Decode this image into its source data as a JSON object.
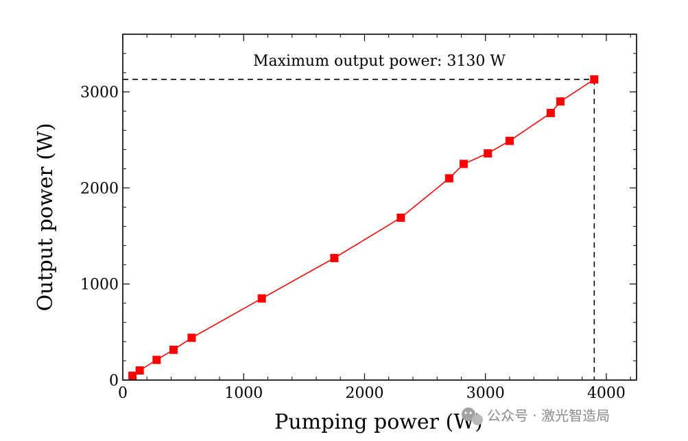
{
  "chart_data": {
    "type": "line",
    "xlabel": "Pumping power (W)",
    "ylabel": "Output power (W)",
    "xlim": [
      0,
      4250
    ],
    "ylim": [
      0,
      3600
    ],
    "x_ticks": [
      0,
      1000,
      2000,
      3000,
      4000
    ],
    "x_tick_labels": [
      "0",
      "1000",
      "2000",
      "3000",
      "4000"
    ],
    "y_ticks": [
      0,
      1000,
      2000,
      3000
    ],
    "y_tick_labels": [
      "0",
      "1000",
      "2000",
      "3000"
    ],
    "grid": false,
    "series": [
      {
        "color": "#ff0000",
        "marker": "square",
        "points": [
          [
            80,
            45
          ],
          [
            140,
            100
          ],
          [
            280,
            210
          ],
          [
            420,
            315
          ],
          [
            570,
            440
          ],
          [
            1150,
            850
          ],
          [
            1750,
            1270
          ],
          [
            2300,
            1690
          ],
          [
            2700,
            2100
          ],
          [
            2820,
            2250
          ],
          [
            3020,
            2360
          ],
          [
            3200,
            2490
          ],
          [
            3540,
            2780
          ],
          [
            3620,
            2900
          ],
          [
            3900,
            3130
          ]
        ]
      }
    ],
    "annotation": {
      "text": "Maximum output power: 3130 W",
      "x": 3900,
      "y": 3130
    }
  },
  "watermark": {
    "text": "公众号 · 激光智造局",
    "icon": "wechat-icon"
  }
}
